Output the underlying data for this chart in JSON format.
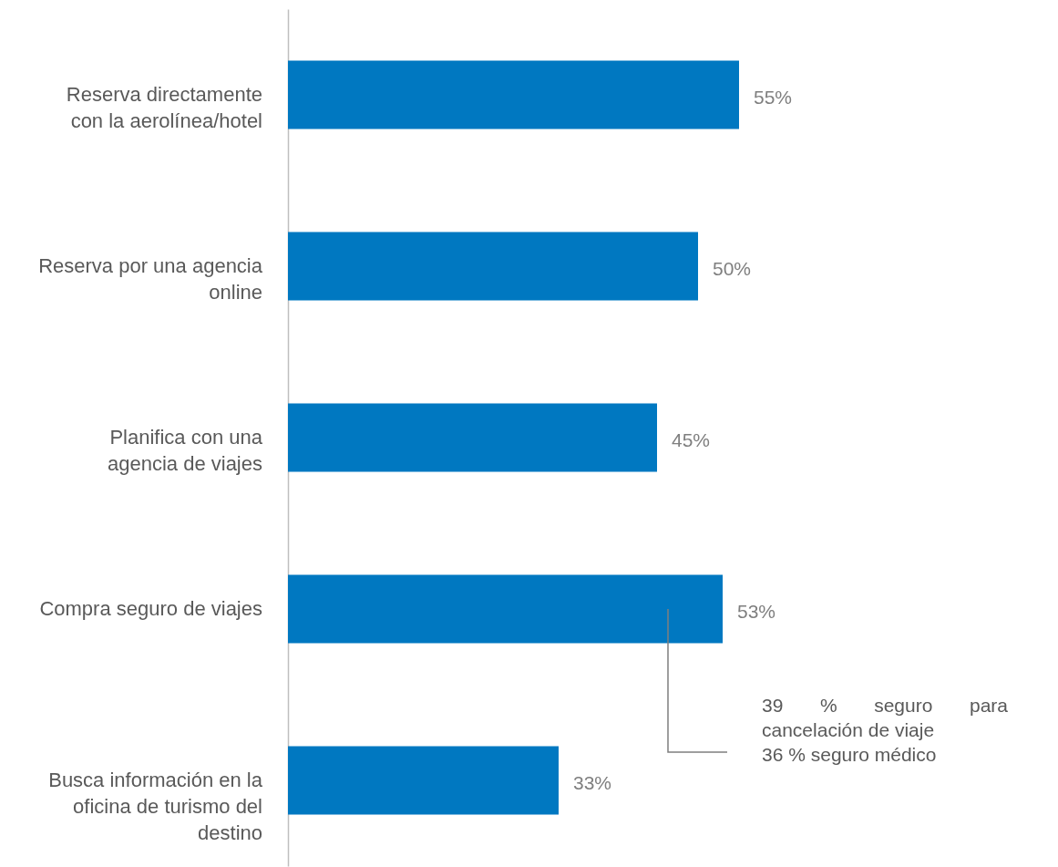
{
  "chart_data": {
    "type": "bar",
    "orientation": "horizontal",
    "categories": [
      "Reserva directamente con la aerolínea/hotel",
      "Reserva por una agencia online",
      "Planifica con una agencia de viajes",
      "Compra seguro de viajes",
      "Busca información en la oficina de turismo del destino"
    ],
    "values": [
      55,
      50,
      45,
      53,
      33
    ],
    "value_labels": [
      "55%",
      "50%",
      "45%",
      "53%",
      "33%"
    ],
    "color": "#0078c1",
    "annotations": [
      "39 % seguro para cancelación de viaje",
      "36 % seguro médico"
    ]
  }
}
